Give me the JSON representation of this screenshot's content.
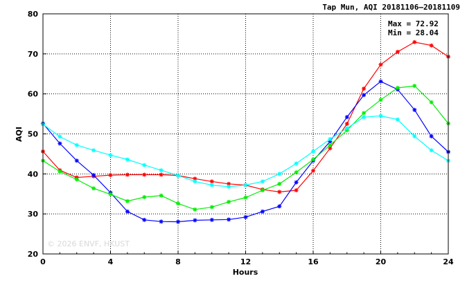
{
  "chart_data": {
    "type": "line",
    "title": "Tap Mun, AQI 20181106–20181109",
    "xlabel": "Hours",
    "ylabel": "AQI",
    "xlim": [
      0,
      24
    ],
    "ylim": [
      20,
      80
    ],
    "xticks": [
      0,
      4,
      8,
      12,
      16,
      20,
      24
    ],
    "yticks": [
      20,
      30,
      40,
      50,
      60,
      70,
      80
    ],
    "grid": true,
    "max_label": "Max = 72.92",
    "min_label": "Min = 28.04",
    "watermark": "© 2026  ENVF, HKUST",
    "x": [
      0,
      1,
      2,
      3,
      4,
      5,
      6,
      7,
      8,
      9,
      10,
      11,
      12,
      13,
      14,
      15,
      16,
      17,
      18,
      19,
      20,
      21,
      22,
      23,
      24
    ],
    "series": [
      {
        "color": "#ff0000",
        "values": [
          45.6,
          40.9,
          39.1,
          39.4,
          39.7,
          39.8,
          39.8,
          39.8,
          39.6,
          38.8,
          38.1,
          37.5,
          37.2,
          36.1,
          35.5,
          35.9,
          40.8,
          46.4,
          52.5,
          61.3,
          67.3,
          70.5,
          72.92,
          72.1,
          69.3
        ]
      },
      {
        "color": "#0000ff",
        "values": [
          52.6,
          47.6,
          43.3,
          39.7,
          35.3,
          30.6,
          28.5,
          28.1,
          28.04,
          28.4,
          28.5,
          28.6,
          29.2,
          30.6,
          31.9,
          37.9,
          43.3,
          48.1,
          54.2,
          59.7,
          63.1,
          61.1,
          56.0,
          49.4,
          45.5
        ]
      },
      {
        "color": "#00ee00",
        "values": [
          43.3,
          40.6,
          38.6,
          36.4,
          34.9,
          33.2,
          34.2,
          34.6,
          32.6,
          31.1,
          31.7,
          33.0,
          34.1,
          35.9,
          37.5,
          40.4,
          43.6,
          47.2,
          50.9,
          55.2,
          58.5,
          61.5,
          62.0,
          57.9,
          52.6
        ]
      },
      {
        "color": "#00ffff",
        "values": [
          52.4,
          49.3,
          47.2,
          45.9,
          44.7,
          43.6,
          42.2,
          40.9,
          39.6,
          38.1,
          37.2,
          36.8,
          37.2,
          38.1,
          40.0,
          42.6,
          45.6,
          48.7,
          51.4,
          54.2,
          54.5,
          53.6,
          49.4,
          45.9,
          43.3
        ]
      }
    ]
  }
}
